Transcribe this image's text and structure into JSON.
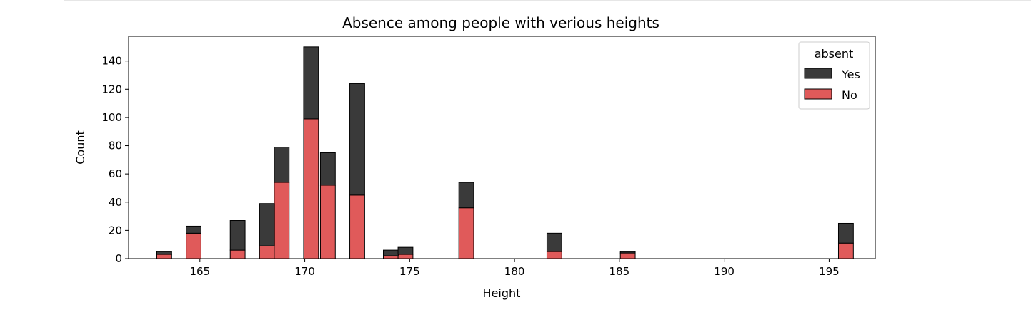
{
  "chart_data": {
    "type": "bar",
    "stacked": true,
    "title": "Absence among people with verious heights",
    "xlabel": "Height",
    "ylabel": "Count",
    "xlim": [
      161.6,
      197.2
    ],
    "ylim": [
      0,
      157.5
    ],
    "xticks": [
      165,
      170,
      175,
      180,
      185,
      190,
      195
    ],
    "yticks": [
      0,
      20,
      40,
      60,
      80,
      100,
      120,
      140
    ],
    "bin_width": 0.71,
    "legend": {
      "title": "absent",
      "placement": "top-right",
      "entries": [
        "Yes",
        "No"
      ]
    },
    "series": [
      {
        "name": "Yes",
        "color": "#3a3a3a",
        "x": [
          163.3,
          164.7,
          166.8,
          168.2,
          168.9,
          170.3,
          171.1,
          172.5,
          174.1,
          174.8,
          177.7,
          181.9,
          185.4,
          195.8
        ],
        "values": [
          2,
          5,
          21,
          30,
          25,
          51,
          23,
          79,
          4,
          5,
          18,
          13,
          1,
          14
        ]
      },
      {
        "name": "No",
        "color": "#e05a5a",
        "x": [
          163.3,
          164.7,
          166.8,
          168.2,
          168.9,
          170.3,
          171.1,
          172.5,
          174.1,
          174.8,
          177.7,
          181.9,
          185.4,
          195.8
        ],
        "values": [
          3,
          18,
          6,
          9,
          54,
          99,
          52,
          45,
          2,
          3,
          36,
          5,
          4,
          11
        ]
      }
    ]
  }
}
